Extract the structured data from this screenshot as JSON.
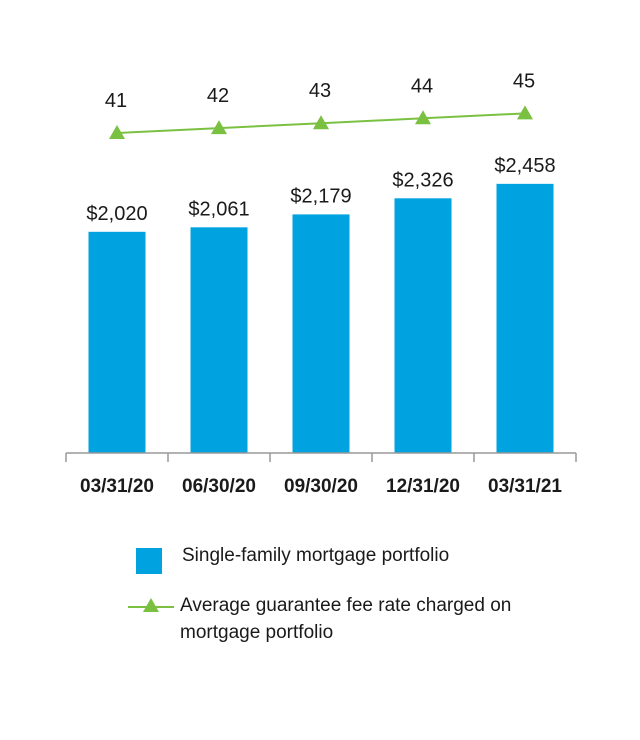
{
  "colors": {
    "bar": "#00a3e0",
    "line": "#7ac142",
    "axis": "#999999",
    "text": "#1a1a1a"
  },
  "legend": {
    "bar_label": "Single-family mortgage portfolio",
    "line_label": "Average guarantee fee rate charged on mortgage portfolio"
  },
  "chart_data": {
    "type": "bar",
    "categories": [
      "03/31/20",
      "06/30/20",
      "09/30/20",
      "12/31/20",
      "03/31/21"
    ],
    "series": [
      {
        "name": "Single-family mortgage portfolio",
        "type": "bar",
        "values": [
          2020,
          2061,
          2179,
          2326,
          2458
        ],
        "labels": [
          "$2,020",
          "$2,061",
          "$2,179",
          "$2,326",
          "$2,458"
        ]
      },
      {
        "name": "Average guarantee fee rate charged on mortgage portfolio",
        "type": "line",
        "values": [
          41,
          42,
          43,
          44,
          45
        ],
        "labels": [
          "41",
          "42",
          "43",
          "44",
          "45"
        ]
      }
    ],
    "title": "",
    "xlabel": "",
    "ylabel": "",
    "grid": false,
    "legend_position": "bottom"
  }
}
